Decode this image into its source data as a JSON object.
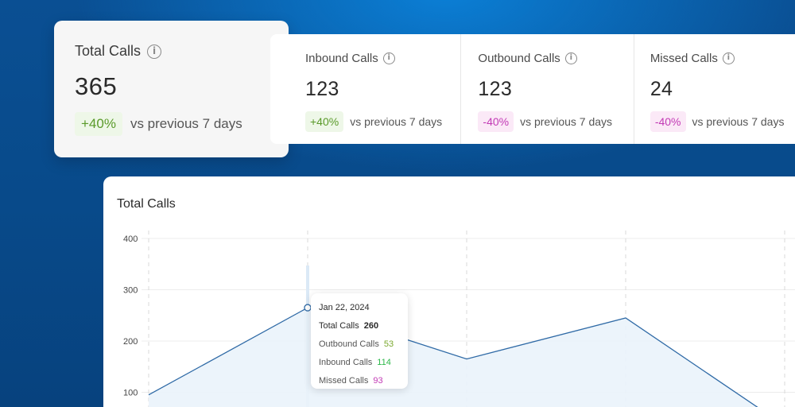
{
  "featured": {
    "label": "Total Calls",
    "value": "365",
    "change": "+40%",
    "comparison": "vs previous 7 days",
    "icon": "info-icon"
  },
  "kpis": [
    {
      "label": "Inbound Calls",
      "value": "123",
      "change": "+40%",
      "comparison": "vs previous 7 days",
      "trend": "positive"
    },
    {
      "label": "Outbound Calls",
      "value": "123",
      "change": "-40%",
      "comparison": "vs previous 7 days",
      "trend": "negative"
    },
    {
      "label": "Missed Calls",
      "value": "24",
      "change": "-40%",
      "comparison": "vs previous 7 days",
      "trend": "negative"
    }
  ],
  "chart": {
    "title": "Total Calls",
    "tooltip": {
      "date": "Jan 22, 2024",
      "total_label": "Total Calls",
      "total_value": "260",
      "outbound_label": "Outbound Calls",
      "outbound_value": "53",
      "inbound_label": "Inbound Calls",
      "inbound_value": "114",
      "missed_label": "Missed Calls",
      "missed_value": "93"
    }
  },
  "chart_data": {
    "type": "area",
    "title": "Total Calls",
    "yticks": [
      "400",
      "300",
      "200",
      "100"
    ],
    "ylim": [
      0,
      400
    ],
    "x_index": [
      0,
      1,
      2,
      3,
      4
    ],
    "values": [
      95,
      265,
      165,
      245,
      35
    ],
    "grid": true,
    "colors": {
      "line": "#2f6aa6",
      "fill": "#eaf3fb"
    }
  },
  "colors": {
    "positive_bg": "#eef7e8",
    "positive_text": "#5a9a2a",
    "negative_bg": "#fbe9f7",
    "negative_text": "#c23ab5"
  }
}
